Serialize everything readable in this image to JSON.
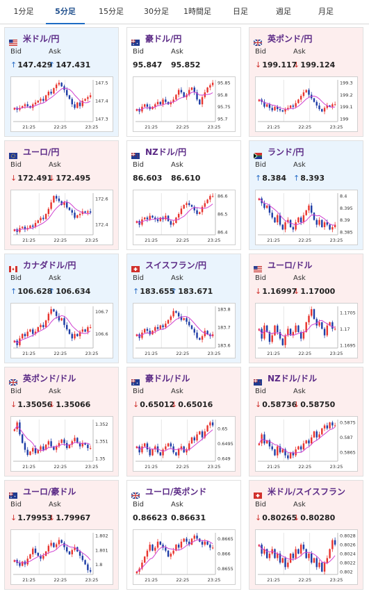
{
  "tabs": [
    {
      "label": "1分足",
      "active": false
    },
    {
      "label": "5分足",
      "active": true
    },
    {
      "label": "15分足",
      "active": false
    },
    {
      "label": "30分足",
      "active": false
    },
    {
      "label": "1時間足",
      "active": false
    },
    {
      "label": "日足",
      "active": false
    },
    {
      "label": "週足",
      "active": false
    },
    {
      "label": "月足",
      "active": false
    }
  ],
  "labels": {
    "bid": "Bid",
    "ask": "Ask"
  },
  "x_ticks": [
    "21:25",
    "22:25",
    "23:25"
  ],
  "colors": {
    "up_candle": "#e8342e",
    "down_candle": "#1e3da6",
    "ma": "#d040d0",
    "card_up_bg": "#eaf4fd",
    "card_down_bg": "#fdeeee"
  },
  "pairs": [
    {
      "name": "米ドル/円",
      "flag": "us",
      "trend": "up",
      "bid": "147.429",
      "ask": "147.431",
      "yticks": [
        "147.5",
        "147.4",
        "147.3"
      ],
      "close": [
        147.36,
        147.35,
        147.36,
        147.37,
        147.38,
        147.37,
        147.36,
        147.38,
        147.39,
        147.4,
        147.41,
        147.4,
        147.43,
        147.45,
        147.44,
        147.47,
        147.49,
        147.5,
        147.48,
        147.46,
        147.43,
        147.41,
        147.38,
        147.36,
        147.39,
        147.37,
        147.4,
        147.41,
        147.42,
        147.43
      ]
    },
    {
      "name": "豪ドル/円",
      "flag": "au",
      "trend": "flat",
      "bid": "95.847",
      "ask": "95.852",
      "yticks": [
        "95.85",
        "95.8",
        "95.75",
        "95.7"
      ],
      "close": [
        95.74,
        95.73,
        95.75,
        95.76,
        95.75,
        95.74,
        95.75,
        95.76,
        95.77,
        95.76,
        95.78,
        95.77,
        95.76,
        95.77,
        95.78,
        95.8,
        95.82,
        95.81,
        95.79,
        95.8,
        95.82,
        95.83,
        95.81,
        95.78,
        95.76,
        95.79,
        95.81,
        95.83,
        95.84,
        95.85
      ]
    },
    {
      "name": "英ポンド/円",
      "flag": "gb",
      "trend": "down",
      "bid": "199.117",
      "ask": "199.124",
      "yticks": [
        "199.3",
        "199.2",
        "199.1",
        "199"
      ],
      "close": [
        199.16,
        199.14,
        199.1,
        199.12,
        199.09,
        199.07,
        199.1,
        199.08,
        199.07,
        199.06,
        199.08,
        199.09,
        199.11,
        199.1,
        199.13,
        199.16,
        199.19,
        199.22,
        199.24,
        199.2,
        199.17,
        199.14,
        199.11,
        199.08,
        199.06,
        199.09,
        199.11,
        199.1,
        199.12,
        199.12
      ]
    },
    {
      "name": "ユーロ/円",
      "flag": "eu",
      "trend": "down",
      "bid": "172.491",
      "ask": "172.495",
      "yticks": [
        "172.6",
        "172.4"
      ],
      "close": [
        172.36,
        172.34,
        172.37,
        172.38,
        172.36,
        172.37,
        172.39,
        172.38,
        172.41,
        172.43,
        172.45,
        172.44,
        172.48,
        172.52,
        172.57,
        172.62,
        172.6,
        172.58,
        172.55,
        172.57,
        172.53,
        172.51,
        172.49,
        172.45,
        172.47,
        172.48,
        172.5,
        172.49,
        172.5,
        172.49
      ]
    },
    {
      "name": "NZドル/円",
      "flag": "nz",
      "trend": "flat",
      "bid": "86.603",
      "ask": "86.610",
      "yticks": [
        "86.6",
        "86.5",
        "86.4"
      ],
      "close": [
        86.46,
        86.44,
        86.47,
        86.48,
        86.47,
        86.49,
        86.48,
        86.47,
        86.46,
        86.48,
        86.47,
        86.49,
        86.46,
        86.44,
        86.45,
        86.48,
        86.5,
        86.53,
        86.55,
        86.56,
        86.55,
        86.54,
        86.52,
        86.5,
        86.51,
        86.54,
        86.56,
        86.58,
        86.6,
        86.6
      ]
    },
    {
      "name": "ランド/円",
      "flag": "za",
      "trend": "up",
      "bid": "8.384",
      "ask": "8.393",
      "yticks": [
        "8.4",
        "8.395",
        "8.39",
        "8.385"
      ],
      "close": [
        8.399,
        8.397,
        8.395,
        8.396,
        8.393,
        8.391,
        8.389,
        8.392,
        8.388,
        8.386,
        8.389,
        8.39,
        8.387,
        8.386,
        8.389,
        8.391,
        8.389,
        8.392,
        8.394,
        8.396,
        8.393,
        8.39,
        8.388,
        8.39,
        8.387,
        8.389,
        8.388,
        8.386,
        8.387,
        8.388
      ]
    },
    {
      "name": "カナダドル/円",
      "flag": "ca",
      "trend": "up",
      "bid": "106.628",
      "ask": "106.634",
      "yticks": [
        "106.7",
        "106.6"
      ],
      "close": [
        106.57,
        106.55,
        106.58,
        106.6,
        106.59,
        106.61,
        106.62,
        106.6,
        106.61,
        106.63,
        106.64,
        106.63,
        106.66,
        106.69,
        106.71,
        106.7,
        106.68,
        106.66,
        106.67,
        106.64,
        106.62,
        106.6,
        106.58,
        106.6,
        106.59,
        106.61,
        106.62,
        106.61,
        106.63,
        106.63
      ]
    },
    {
      "name": "スイスフラン/円",
      "flag": "ch",
      "trend": "up",
      "bid": "183.655",
      "ask": "183.671",
      "yticks": [
        "183.8",
        "183.7",
        "183.6"
      ],
      "close": [
        183.66,
        183.64,
        183.67,
        183.69,
        183.68,
        183.66,
        183.68,
        183.7,
        183.69,
        183.71,
        183.7,
        183.72,
        183.74,
        183.76,
        183.79,
        183.78,
        183.76,
        183.74,
        183.75,
        183.73,
        183.71,
        183.69,
        183.67,
        183.64,
        183.63,
        183.65,
        183.68,
        183.66,
        183.65,
        183.66
      ]
    },
    {
      "name": "ユーロ/ドル",
      "flag": "us",
      "trend": "down",
      "bid": "1.16997",
      "ask": "1.17000",
      "yticks": [
        "1.1705",
        "1.17",
        "1.1695"
      ],
      "close": [
        1.17,
        1.1697,
        1.1701,
        1.1699,
        1.1696,
        1.1698,
        1.1701,
        1.1699,
        1.1697,
        1.1695,
        1.1698,
        1.17,
        1.1698,
        1.1699,
        1.1701,
        1.1699,
        1.1697,
        1.1699,
        1.1702,
        1.1704,
        1.1706,
        1.1703,
        1.1701,
        1.1702,
        1.17,
        1.1698,
        1.1701,
        1.1702,
        1.17,
        1.17
      ]
    },
    {
      "name": "英ポンド/ドル",
      "flag": "gb",
      "trend": "down",
      "bid": "1.35056",
      "ask": "1.35066",
      "yticks": [
        "1.352",
        "1.351",
        "1.35"
      ],
      "close": [
        1.3517,
        1.3521,
        1.3514,
        1.3509,
        1.3505,
        1.3502,
        1.3504,
        1.3506,
        1.3503,
        1.3505,
        1.3507,
        1.3505,
        1.3508,
        1.351,
        1.3507,
        1.3505,
        1.3507,
        1.3509,
        1.3511,
        1.3509,
        1.3506,
        1.3508,
        1.351,
        1.3512,
        1.3509,
        1.3507,
        1.3509,
        1.3508,
        1.3506,
        1.3506
      ]
    },
    {
      "name": "豪ドル/ドル",
      "flag": "au",
      "trend": "down",
      "bid": "0.65012",
      "ask": "0.65016",
      "yticks": [
        "0.65",
        "0.6495",
        "0.649"
      ],
      "close": [
        0.6494,
        0.6492,
        0.6494,
        0.6495,
        0.6493,
        0.6491,
        0.6493,
        0.6494,
        0.6492,
        0.6491,
        0.6493,
        0.6494,
        0.6495,
        0.6494,
        0.6492,
        0.6491,
        0.6493,
        0.6494,
        0.6492,
        0.6493,
        0.6495,
        0.6497,
        0.6496,
        0.6498,
        0.6499,
        0.6497,
        0.6499,
        0.6501,
        0.6502,
        0.6501
      ]
    },
    {
      "name": "NZドル/ドル",
      "flag": "nz",
      "trend": "down",
      "bid": "0.58736",
      "ask": "0.58750",
      "yticks": [
        "0.5875",
        "0.587",
        "0.5865"
      ],
      "close": [
        0.5868,
        0.5871,
        0.5868,
        0.5869,
        0.5867,
        0.5866,
        0.5864,
        0.5867,
        0.5865,
        0.5866,
        0.5864,
        0.5863,
        0.5865,
        0.5864,
        0.5866,
        0.5867,
        0.5866,
        0.5868,
        0.5869,
        0.5868,
        0.587,
        0.5872,
        0.587,
        0.5871,
        0.5873,
        0.5874,
        0.5873,
        0.5875,
        0.5874,
        0.5874
      ]
    },
    {
      "name": "ユーロ/豪ドル",
      "flag": "au",
      "trend": "down",
      "bid": "1.79953",
      "ask": "1.79967",
      "yticks": [
        "1.802",
        "1.801",
        "1.8"
      ],
      "close": [
        1.8003,
        1.8001,
        1.7999,
        1.8002,
        1.8,
        1.8004,
        1.8007,
        1.8011,
        1.8008,
        1.8006,
        1.8004,
        1.8006,
        1.8009,
        1.8013,
        1.8015,
        1.8012,
        1.8014,
        1.8017,
        1.8015,
        1.8012,
        1.8009,
        1.8007,
        1.801,
        1.8012,
        1.8009,
        1.8006,
        1.8003,
        1.8,
        1.7996,
        1.7995
      ]
    },
    {
      "name": "ユーロ/英ポンド",
      "flag": "gb",
      "trend": "flat",
      "bid": "0.86623",
      "ask": "0.86631",
      "yticks": [
        "0.8665",
        "0.866",
        "0.8655"
      ],
      "close": [
        0.8654,
        0.8655,
        0.8657,
        0.8659,
        0.8661,
        0.8663,
        0.8661,
        0.8662,
        0.8664,
        0.8663,
        0.8662,
        0.8661,
        0.8659,
        0.866,
        0.8661,
        0.8663,
        0.8662,
        0.8664,
        0.8665,
        0.8664,
        0.8663,
        0.8665,
        0.8666,
        0.8665,
        0.8664,
        0.8663,
        0.8664,
        0.8663,
        0.8662,
        0.8662
      ]
    },
    {
      "name": "米ドル/スイスフラン",
      "flag": "ch",
      "trend": "down",
      "bid": "0.80265",
      "ask": "0.80280",
      "yticks": [
        "0.8028",
        "0.8026",
        "0.8024",
        "0.8022",
        "0.802"
      ],
      "close": [
        0.8026,
        0.8024,
        0.8025,
        0.8023,
        0.8024,
        0.8025,
        0.8023,
        0.8024,
        0.8022,
        0.8023,
        0.8021,
        0.8022,
        0.8024,
        0.8023,
        0.8025,
        0.8024,
        0.8026,
        0.8025,
        0.8023,
        0.8024,
        0.8022,
        0.8023,
        0.8021,
        0.8022,
        0.802,
        0.8022,
        0.8023,
        0.8025,
        0.8027,
        0.8026
      ]
    }
  ]
}
